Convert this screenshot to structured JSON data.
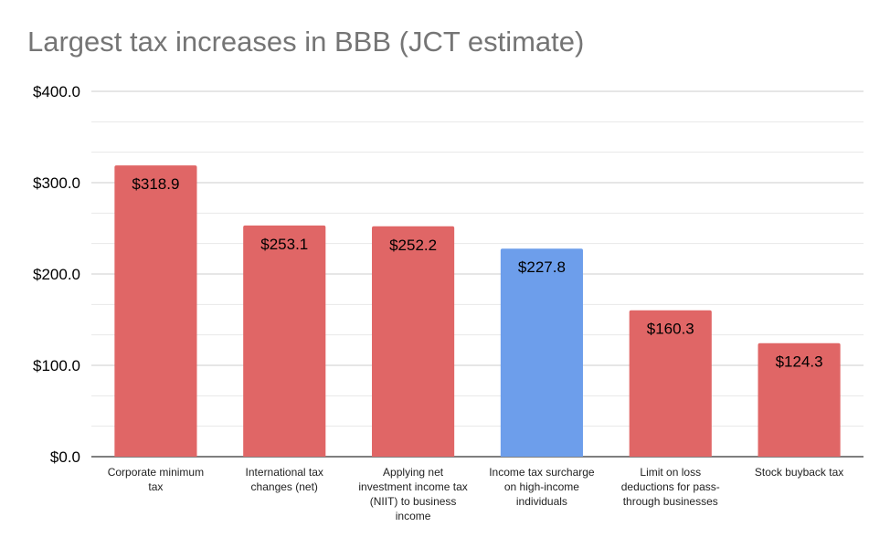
{
  "chart_data": {
    "type": "bar",
    "title": "Largest tax increases in BBB (JCT estimate)",
    "xlabel": "",
    "ylabel": "",
    "ylim": [
      0,
      400
    ],
    "yticks": [
      "$0.0",
      "$100.0",
      "$200.0",
      "$300.0",
      "$400.0"
    ],
    "grid": true,
    "legend": "none",
    "categories": [
      [
        "Corporate minimum",
        "tax"
      ],
      [
        "International tax",
        "changes (net)"
      ],
      [
        "Applying net",
        "investment income tax",
        "(NIIT) to business",
        "income"
      ],
      [
        "Income tax surcharge",
        "on high-income",
        "individuals"
      ],
      [
        "Limit on loss",
        "deductions for pass-",
        "through businesses"
      ],
      [
        "Stock buyback tax"
      ]
    ],
    "values": [
      318.9,
      253.1,
      252.2,
      227.8,
      160.3,
      124.3
    ],
    "data_labels": [
      "$318.9",
      "$253.1",
      "$252.2",
      "$227.8",
      "$160.3",
      "$124.3"
    ],
    "colors": [
      "#e06666",
      "#e06666",
      "#e06666",
      "#6d9eeb",
      "#e06666",
      "#e06666"
    ]
  }
}
